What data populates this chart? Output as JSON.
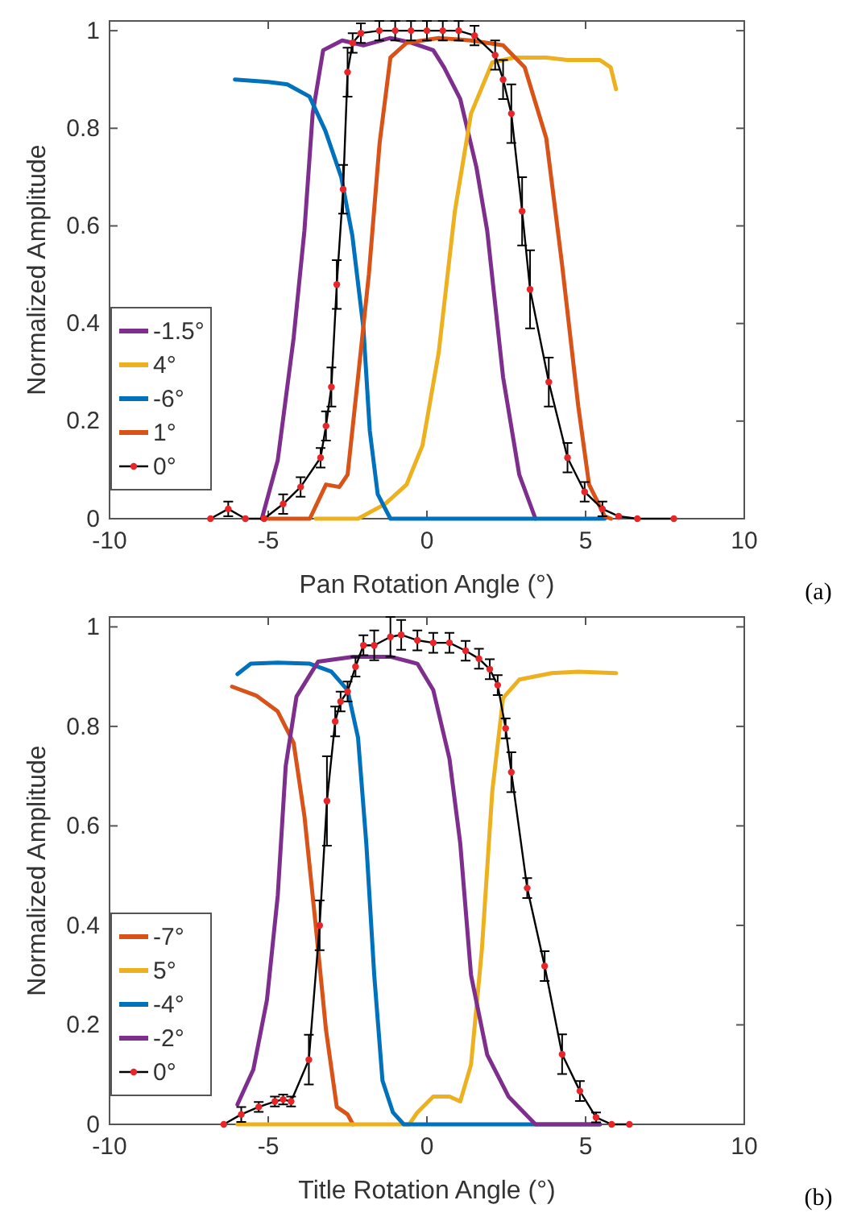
{
  "chart_data": [
    {
      "type": "line",
      "xlabel": "Pan Rotation Angle (°)",
      "ylabel": "Normalized Amplitude",
      "xlim": [
        -10,
        10
      ],
      "xticks": [
        -10,
        -5,
        0,
        5,
        10
      ],
      "ylim": [
        0,
        1.02
      ],
      "yticks": [
        0,
        0.2,
        0.4,
        0.6,
        0.8,
        1
      ],
      "legend": "bottom left",
      "grid": false,
      "annotations": [
        "(a)"
      ],
      "series": [
        {
          "name": "-1.5°",
          "color": "#7e2f8e",
          "marker": "none",
          "x": [
            -5.2,
            -4.7,
            -4.2,
            -3.86,
            -3.6,
            -3.27,
            -2.67,
            -2.0,
            -1.15,
            -0.47,
            0.2,
            0.54,
            1.05,
            1.56,
            1.9,
            2.4,
            2.91,
            3.42
          ],
          "values": [
            0,
            0.12,
            0.37,
            0.59,
            0.83,
            0.96,
            0.98,
            0.97,
            0.985,
            0.975,
            0.96,
            0.925,
            0.86,
            0.72,
            0.59,
            0.29,
            0.09,
            0
          ]
        },
        {
          "name": "4°",
          "color": "#edb120",
          "marker": "none",
          "x": [
            -3.5,
            -2.17,
            -1.32,
            -0.64,
            -0.14,
            0.37,
            0.88,
            1.39,
            2.06,
            2.74,
            3.76,
            4.43,
            5.45,
            5.79,
            5.96
          ],
          "values": [
            0,
            0,
            0.03,
            0.07,
            0.15,
            0.34,
            0.63,
            0.83,
            0.935,
            0.945,
            0.945,
            0.94,
            0.94,
            0.925,
            0.88
          ]
        },
        {
          "name": "-6°",
          "color": "#0072bd",
          "marker": "none",
          "x": [
            -6.05,
            -5,
            -4.4,
            -3.7,
            -3.2,
            -2.7,
            -2.35,
            -2.0,
            -1.8,
            -1.55,
            -1.15,
            0,
            2,
            4,
            5.6
          ],
          "values": [
            0.9,
            0.895,
            0.89,
            0.865,
            0.795,
            0.7,
            0.58,
            0.39,
            0.18,
            0.05,
            0,
            0,
            0,
            0,
            0
          ]
        },
        {
          "name": "1°",
          "color": "#d95319",
          "marker": "none",
          "x": [
            -5,
            -3.69,
            -3.18,
            -2.76,
            -2.5,
            -2.17,
            -1.83,
            -1.49,
            -1.15,
            -0.64,
            0.37,
            1.39,
            2.4,
            3.08,
            3.76,
            4.26,
            4.77,
            5.11,
            5.6,
            5.8
          ],
          "values": [
            0,
            0,
            0.07,
            0.065,
            0.09,
            0.29,
            0.5,
            0.77,
            0.945,
            0.975,
            0.985,
            0.98,
            0.97,
            0.925,
            0.78,
            0.52,
            0.23,
            0.07,
            0.005,
            0
          ]
        },
        {
          "name": "0°",
          "color": "#000000",
          "marker": "circle",
          "x": [
            -6.82,
            -6.26,
            -5.72,
            -5.13,
            -4.53,
            -3.98,
            -3.35,
            -3.18,
            -3.01,
            -2.84,
            -2.64,
            -2.5,
            -2.34,
            -2.08,
            -1.5,
            -1.0,
            -0.5,
            0,
            0.5,
            1.0,
            1.5,
            2.15,
            2.4,
            2.66,
            3.0,
            3.25,
            3.84,
            4.43,
            4.97,
            5.53,
            6.04,
            6.63,
            7.78
          ],
          "values": [
            0,
            0.02,
            0,
            0,
            0.03,
            0.065,
            0.125,
            0.19,
            0.27,
            0.48,
            0.675,
            0.915,
            0.975,
            0.995,
            1.0,
            1.0,
            1.0,
            1.0,
            1.0,
            1.0,
            0.99,
            0.95,
            0.9,
            0.83,
            0.63,
            0.47,
            0.28,
            0.125,
            0.055,
            0.02,
            0.005,
            0,
            0
          ],
          "errors": [
            null,
            0.015,
            null,
            null,
            0.02,
            0.02,
            0.02,
            0.03,
            0.04,
            0.05,
            0.05,
            0.05,
            0.02,
            0.02,
            0.02,
            0.02,
            0.02,
            0.02,
            0.02,
            0.02,
            0.02,
            0.03,
            0.04,
            0.06,
            0.07,
            0.08,
            0.05,
            0.03,
            0.02,
            0.015,
            null,
            null,
            null
          ]
        }
      ]
    },
    {
      "type": "line",
      "xlabel": "Title Rotation Angle (°)",
      "ylabel": "Normalized Amplitude",
      "xlim": [
        -10,
        10
      ],
      "xticks": [
        -10,
        -5,
        0,
        5,
        10
      ],
      "ylim": [
        0,
        1.02
      ],
      "yticks": [
        0,
        0.2,
        0.4,
        0.6,
        0.8,
        1
      ],
      "legend": "bottom left",
      "grid": false,
      "annotations": [
        "(b)"
      ],
      "series": [
        {
          "name": "-7°",
          "color": "#d95319",
          "marker": "none",
          "x": [
            -6.14,
            -5.38,
            -4.7,
            -4.2,
            -3.86,
            -3.52,
            -3.18,
            -2.84,
            -2.5,
            -2.33
          ],
          "values": [
            0.88,
            0.862,
            0.83,
            0.767,
            0.62,
            0.41,
            0.19,
            0.035,
            0.02,
            0
          ]
        },
        {
          "name": "5°",
          "color": "#edb120",
          "marker": "none",
          "x": [
            -5.97,
            -0.56,
            -0.3,
            0.2,
            0.71,
            1.05,
            1.39,
            1.73,
            2.06,
            2.4,
            2.91,
            3.93,
            4.77,
            5.96
          ],
          "values": [
            0,
            0,
            0.024,
            0.056,
            0.056,
            0.046,
            0.12,
            0.35,
            0.67,
            0.857,
            0.894,
            0.907,
            0.91,
            0.907
          ]
        },
        {
          "name": "-4°",
          "color": "#0072bd",
          "marker": "none",
          "x": [
            -5.97,
            -5.55,
            -4.7,
            -3.69,
            -3.01,
            -2.5,
            -2.17,
            -1.91,
            -1.66,
            -1.4,
            -1.07,
            -0.73,
            2,
            5.45
          ],
          "values": [
            0.905,
            0.926,
            0.928,
            0.926,
            0.91,
            0.873,
            0.777,
            0.565,
            0.3,
            0.088,
            0.024,
            0,
            0,
            0
          ]
        },
        {
          "name": "-2°",
          "color": "#7e2f8e",
          "marker": "none",
          "x": [
            -5.97,
            -5.47,
            -5.04,
            -4.7,
            -4.45,
            -4.11,
            -3.43,
            -2.33,
            -1.15,
            -0.3,
            0.2,
            0.71,
            1.05,
            1.39,
            1.9,
            2.57,
            3.42,
            5.45
          ],
          "values": [
            0.04,
            0.11,
            0.25,
            0.46,
            0.72,
            0.86,
            0.93,
            0.94,
            0.94,
            0.926,
            0.873,
            0.735,
            0.565,
            0.3,
            0.14,
            0.056,
            0,
            0
          ]
        },
        {
          "name": "0°",
          "color": "#000000",
          "marker": "circle",
          "x": [
            -6.4,
            -5.85,
            -5.3,
            -4.79,
            -4.53,
            -4.28,
            -3.72,
            -3.38,
            -3.15,
            -2.89,
            -2.72,
            -2.5,
            -2.25,
            -2.0,
            -1.66,
            -1.15,
            -0.81,
            -0.3,
            0.2,
            0.71,
            1.22,
            1.64,
            1.98,
            2.23,
            2.48,
            2.66,
            3.16,
            3.71,
            4.26,
            4.82,
            5.33,
            5.82,
            6.38
          ],
          "values": [
            0,
            0.02,
            0.035,
            0.046,
            0.05,
            0.046,
            0.13,
            0.4,
            0.65,
            0.81,
            0.85,
            0.87,
            0.92,
            0.963,
            0.963,
            0.98,
            0.984,
            0.973,
            0.968,
            0.968,
            0.952,
            0.936,
            0.915,
            0.883,
            0.796,
            0.708,
            0.475,
            0.318,
            0.141,
            0.067,
            0.014,
            0,
            0
          ],
          "errors": [
            null,
            0.015,
            0.01,
            0.01,
            0.01,
            0.01,
            0.05,
            0.05,
            0.09,
            0.03,
            0.02,
            0.02,
            0.02,
            0.02,
            0.03,
            0.04,
            0.03,
            0.02,
            0.02,
            0.02,
            0.02,
            0.02,
            0.02,
            0.02,
            0.02,
            0.04,
            0.02,
            0.03,
            0.04,
            0.02,
            0.01,
            null,
            null
          ]
        }
      ]
    }
  ]
}
